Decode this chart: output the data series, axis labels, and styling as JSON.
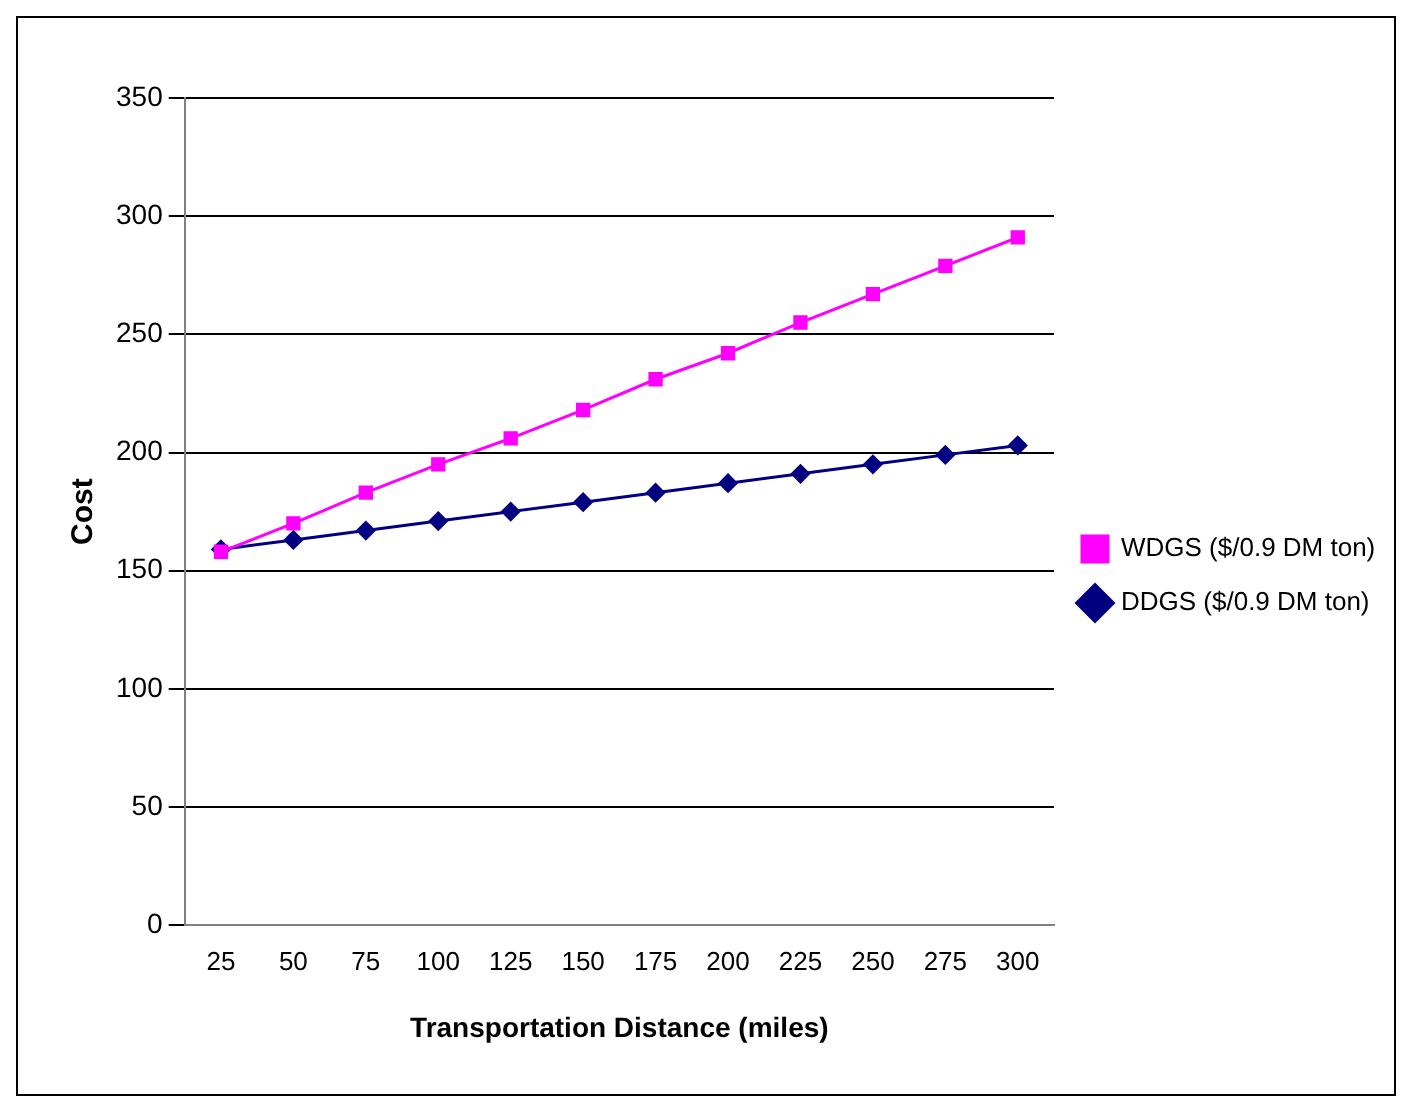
{
  "chart_data": {
    "type": "line",
    "xlabel": "Transportation Distance (miles)",
    "ylabel": "Cost",
    "categories": [
      "25",
      "50",
      "75",
      "100",
      "125",
      "150",
      "175",
      "200",
      "225",
      "250",
      "275",
      "300"
    ],
    "series": [
      {
        "name": "DDGS ($/0.9 DM ton)",
        "color": "#000080",
        "marker": "diamond",
        "values": [
          159,
          163,
          167,
          171,
          175,
          179,
          183,
          187,
          191,
          195,
          199,
          203
        ]
      },
      {
        "name": "WDGS ($/0.9 DM ton)",
        "color": "#ff00ff",
        "marker": "square",
        "values": [
          158,
          170,
          183,
          195,
          206,
          218,
          231,
          242,
          255,
          267,
          279,
          291
        ]
      }
    ],
    "ylim": [
      0,
      350
    ],
    "yticks": [
      0,
      50,
      100,
      150,
      200,
      250,
      300,
      350
    ],
    "grid": "y",
    "legend": "right",
    "line_style": "solid"
  }
}
